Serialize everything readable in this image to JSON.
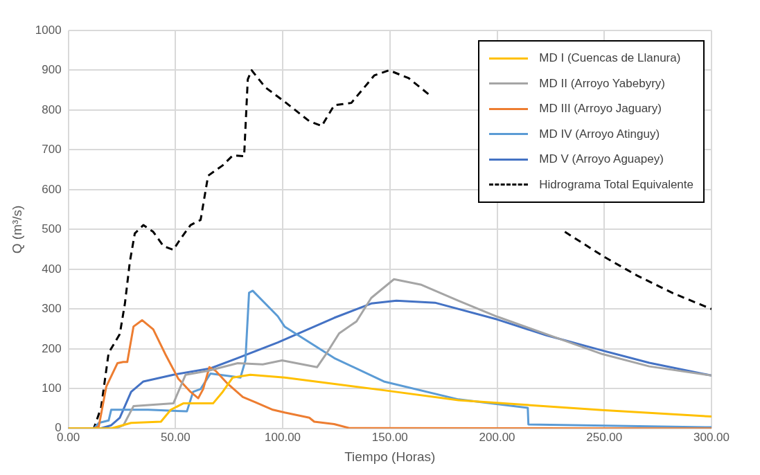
{
  "chart_data": {
    "type": "line",
    "xlabel": "Tiempo (Horas)",
    "ylabel": "Q (m³/s)",
    "xlim": [
      0,
      300
    ],
    "xticks": [
      {
        "value": 0,
        "label": "0.00"
      },
      {
        "value": 50,
        "label": "50.00"
      },
      {
        "value": 100,
        "label": "100.00"
      },
      {
        "value": 150,
        "label": "150.00"
      },
      {
        "value": 200,
        "label": "200.00"
      },
      {
        "value": 250,
        "label": "250.00"
      },
      {
        "value": 300,
        "label": "300.00"
      }
    ],
    "ylim": [
      0,
      1000
    ],
    "yticks": [
      0,
      100,
      200,
      300,
      400,
      500,
      600,
      700,
      800,
      900,
      1000
    ],
    "grid": true,
    "legend": "top right",
    "marker": "none",
    "series": [
      {
        "name": "MD I (Cuencas de Llanura)",
        "color": "#ffc000",
        "x": [
          0,
          20,
          29.3,
          43.2,
          47.8,
          53.6,
          67.5,
          72,
          76.7,
          84.9,
          100.9,
          147.2,
          182,
          249,
          300
        ],
        "values": [
          0,
          0,
          14,
          17,
          47,
          63,
          63,
          92,
          128,
          135,
          128,
          96,
          71,
          46,
          30
        ]
      },
      {
        "name": "MD II (Arroyo Yabebyry)",
        "color": "#a5a5a5",
        "x": [
          0,
          22,
          25.7,
          30.4,
          49,
          54.7,
          65.2,
          79,
          90.7,
          99.7,
          116,
          120.6,
          126.3,
          134.4,
          141.3,
          151.9,
          164.7,
          182,
          200,
          223,
          249,
          271,
          300
        ],
        "values": [
          0,
          0,
          8,
          56,
          63,
          135,
          145,
          164,
          161,
          171,
          154,
          190,
          239,
          269,
          328,
          375,
          361,
          321,
          281,
          237,
          187,
          156,
          133
        ]
      },
      {
        "name": "MD III (Arroyo Jaguary)",
        "color": "#ed7d31",
        "x": [
          0,
          12,
          14.2,
          17.7,
          22.9,
          25.6,
          27.5,
          30.4,
          34.4,
          39.6,
          45.5,
          51.3,
          57,
          60.6,
          62.9,
          65.8,
          68.7,
          74.4,
          81.4,
          87.2,
          95.4,
          100.9,
          112.4,
          114.7,
          124,
          131,
          300
        ],
        "values": [
          0,
          0,
          5,
          105,
          164,
          167,
          167,
          256,
          272,
          249,
          184,
          125,
          92,
          76,
          99,
          154,
          145,
          112,
          79,
          66,
          47,
          40,
          27,
          17,
          11,
          1,
          0
        ]
      },
      {
        "name": "MD IV (Arroyo Atinguy)",
        "color": "#5b9bd5",
        "x": [
          0,
          12,
          14.2,
          18.8,
          20,
          37.3,
          55.3,
          58.2,
          61.7,
          66.3,
          80.3,
          82.6,
          84.3,
          86,
          97.7,
          100.9,
          124,
          147.2,
          182,
          214.3,
          214.6,
          300
        ],
        "values": [
          0,
          0,
          14,
          20,
          47,
          47,
          43,
          92,
          99,
          138,
          128,
          171,
          341,
          346,
          282,
          256,
          177,
          118,
          73,
          52,
          10,
          3
        ]
      },
      {
        "name": "MD V (Arroyo Aguapey)",
        "color": "#4472c4",
        "x": [
          0,
          15,
          20,
          24,
          29.3,
          35,
          49,
          66.3,
          79,
          97.7,
          124,
          141.3,
          153,
          171,
          200,
          223,
          249,
          271,
          300
        ],
        "values": [
          0,
          0,
          8,
          27,
          92,
          118,
          135,
          151,
          177,
          216,
          278,
          314,
          321,
          316,
          274,
          234,
          196,
          165,
          133
        ]
      },
      {
        "name": "Hidrograma Total Equivalente",
        "color": "#000000",
        "line_style": "dashed",
        "x": [
          0,
          10,
          11.9,
          15.3,
          18.8,
          24,
          26.4,
          28.7,
          31,
          35,
          39.6,
          44.4,
          49,
          52.4,
          57,
          61.7,
          65.2,
          72,
          76.7,
          82,
          83.7,
          85.5,
          91.9,
          100.9,
          112.4,
          118.2,
          124,
          132,
          142.7,
          149.6,
          158.8,
          168,
          170,
          228,
          231.6,
          250,
          265.4,
          282,
          300
        ],
        "values": [
          0,
          0,
          0,
          53,
          190,
          237,
          314,
          419,
          490,
          511,
          494,
          458,
          449,
          477,
          511,
          524,
          635,
          661,
          686,
          684,
          877,
          900,
          857,
          821,
          772,
          760,
          812,
          818,
          887,
          900,
          880,
          840,
          null,
          null,
          494,
          431,
          384,
          340,
          300
        ]
      }
    ]
  }
}
